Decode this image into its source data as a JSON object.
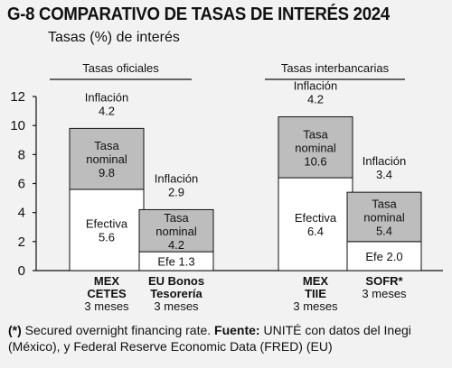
{
  "header": {
    "title": "G-8 COMPARATIVO DE TASAS DE INTERÉS 2024",
    "subtitle": "Tasas (%) de interés"
  },
  "group_labels": [
    "Tasas oficiales",
    "Tasas interbancarias"
  ],
  "colors": {
    "nominal": "#bdbdbd",
    "efectiva": "#ffffff",
    "line": "#111111",
    "background": "#f2f2f2"
  },
  "chart_data": {
    "type": "bar",
    "stacked": true,
    "ylim": [
      0,
      12
    ],
    "yticks": [
      "0",
      "2",
      "4",
      "6",
      "8",
      "10",
      "12"
    ],
    "categories": [
      [
        "MEX",
        "CETES",
        "3 meses"
      ],
      [
        "EU Bonos",
        "Tesorería",
        "3 meses"
      ],
      [
        "MEX",
        "TIIE",
        "3 meses"
      ],
      [
        "SOFR*",
        "3 meses"
      ]
    ],
    "series": [
      {
        "name": "Efectiva",
        "values": [
          5.6,
          1.3,
          6.4,
          2.0
        ]
      },
      {
        "name": "Inflación",
        "values": [
          4.2,
          2.9,
          4.2,
          3.4
        ]
      }
    ],
    "totals": {
      "name": "Tasa nominal",
      "values": [
        9.8,
        4.2,
        10.6,
        5.4
      ]
    },
    "bar_labels": {
      "efectiva": [
        [
          "Efectiva",
          "5.6"
        ],
        [
          "Efe 1.3"
        ],
        [
          "Efectiva",
          "6.4"
        ],
        [
          "Efe 2.0"
        ]
      ],
      "nominal": [
        [
          "Tasa",
          "nominal",
          "9.8"
        ],
        [
          "Tasa",
          "nominal",
          "4.2"
        ],
        [
          "Tasa",
          "nominal",
          "10.6"
        ],
        [
          "Tasa",
          "nominal",
          "5.4"
        ]
      ],
      "inflacion": [
        [
          "Inflación",
          "4.2"
        ],
        [
          "Inflación",
          "2.9"
        ],
        [
          "Inflación",
          "4.2"
        ],
        [
          "Inflación",
          "3.4"
        ]
      ]
    }
  },
  "footnote": {
    "marker": "(*)",
    "text1": " Secured overnight financing rate. ",
    "source_label": "Fuente:",
    "text2": " UNITÉ con datos del Inegi (México), y Federal Reserve Economic Data (FRED) (EU)"
  }
}
